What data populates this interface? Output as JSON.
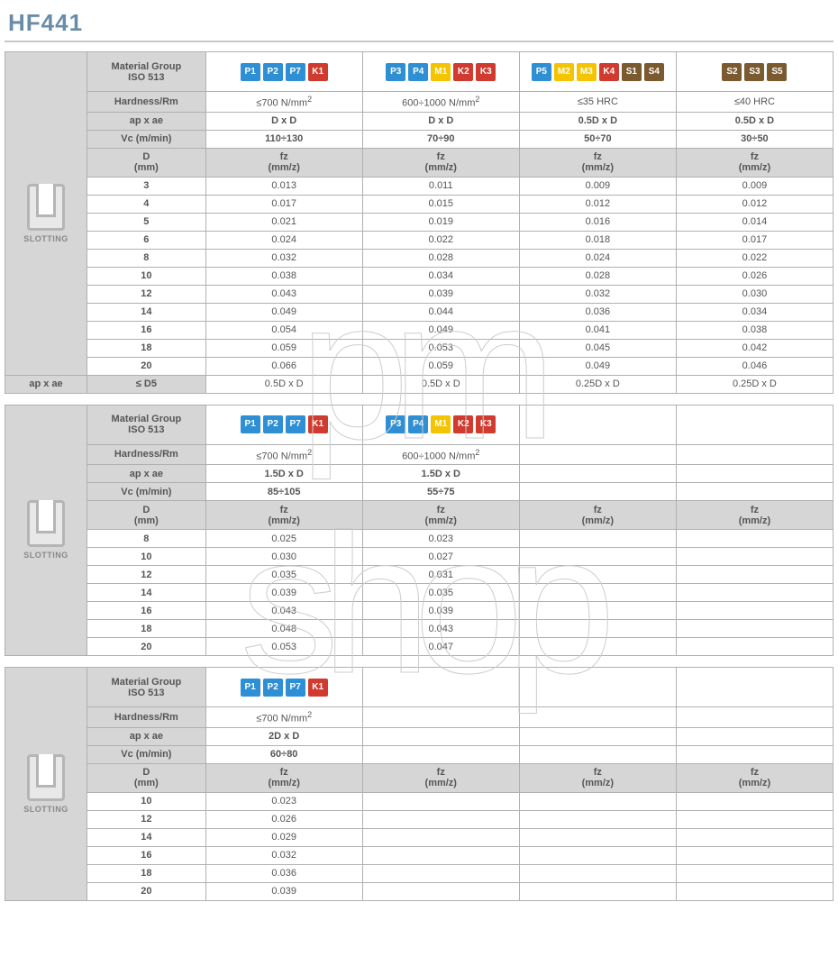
{
  "title": "HF441",
  "slotting_label": "SLOTTING",
  "labels": {
    "material_group": "Material Group\nISO 513",
    "hardness": "Hardness/Rm",
    "ap_ae": "ap x ae",
    "vc": "Vc (m/min)",
    "d": "D\n(mm)",
    "fz": "fz\n(mm/z)"
  },
  "footer_label": "ap x ae",
  "footer_d": "≤ D5",
  "table1": {
    "cols": [
      {
        "chips": [
          [
            "P",
            "P1"
          ],
          [
            "P",
            "P2"
          ],
          [
            "P",
            "P7"
          ],
          [
            "K",
            "K1"
          ]
        ],
        "hardness": "≤700 N/mm²",
        "ap_ae": "D x D",
        "vc": "110÷130",
        "footer": "0.5D x D"
      },
      {
        "chips": [
          [
            "P",
            "P3"
          ],
          [
            "P",
            "P4"
          ],
          [
            "M",
            "M1"
          ],
          [
            "K",
            "K2"
          ],
          [
            "K",
            "K3"
          ]
        ],
        "hardness": "600÷1000 N/mm²",
        "ap_ae": "D x D",
        "vc": "70÷90",
        "footer": "0.5D x D"
      },
      {
        "chips": [
          [
            "P",
            "P5"
          ],
          [
            "M",
            "M2"
          ],
          [
            "M",
            "M3"
          ],
          [
            "K",
            "K4"
          ],
          [
            "S",
            "S1"
          ],
          [
            "S",
            "S4"
          ]
        ],
        "hardness": "≤35 HRC",
        "ap_ae": "0.5D x D",
        "vc": "50÷70",
        "footer": "0.25D x D"
      },
      {
        "chips": [
          [
            "S",
            "S2"
          ],
          [
            "S",
            "S3"
          ],
          [
            "S",
            "S5"
          ]
        ],
        "hardness": "≤40 HRC",
        "ap_ae": "0.5D x D",
        "vc": "30÷50",
        "footer": "0.25D x D"
      }
    ],
    "rows": [
      {
        "d": "3",
        "v": [
          "0.013",
          "0.011",
          "0.009",
          "0.009"
        ]
      },
      {
        "d": "4",
        "v": [
          "0.017",
          "0.015",
          "0.012",
          "0.012"
        ]
      },
      {
        "d": "5",
        "v": [
          "0.021",
          "0.019",
          "0.016",
          "0.014"
        ]
      },
      {
        "d": "6",
        "v": [
          "0.024",
          "0.022",
          "0.018",
          "0.017"
        ]
      },
      {
        "d": "8",
        "v": [
          "0.032",
          "0.028",
          "0.024",
          "0.022"
        ]
      },
      {
        "d": "10",
        "v": [
          "0.038",
          "0.034",
          "0.028",
          "0.026"
        ]
      },
      {
        "d": "12",
        "v": [
          "0.043",
          "0.039",
          "0.032",
          "0.030"
        ]
      },
      {
        "d": "14",
        "v": [
          "0.049",
          "0.044",
          "0.036",
          "0.034"
        ]
      },
      {
        "d": "16",
        "v": [
          "0.054",
          "0.049",
          "0.041",
          "0.038"
        ]
      },
      {
        "d": "18",
        "v": [
          "0.059",
          "0.053",
          "0.045",
          "0.042"
        ]
      },
      {
        "d": "20",
        "v": [
          "0.066",
          "0.059",
          "0.049",
          "0.046"
        ]
      }
    ]
  },
  "table2": {
    "cols": [
      {
        "chips": [
          [
            "P",
            "P1"
          ],
          [
            "P",
            "P2"
          ],
          [
            "P",
            "P7"
          ],
          [
            "K",
            "K1"
          ]
        ],
        "hardness": "≤700 N/mm²",
        "ap_ae": "1.5D x D",
        "vc": "85÷105"
      },
      {
        "chips": [
          [
            "P",
            "P3"
          ],
          [
            "P",
            "P4"
          ],
          [
            "M",
            "M1"
          ],
          [
            "K",
            "K2"
          ],
          [
            "K",
            "K3"
          ]
        ],
        "hardness": "600÷1000 N/mm²",
        "ap_ae": "1.5D x D",
        "vc": "55÷75"
      },
      {
        "chips": [],
        "hardness": "",
        "ap_ae": "",
        "vc": ""
      },
      {
        "chips": [],
        "hardness": "",
        "ap_ae": "",
        "vc": ""
      }
    ],
    "rows": [
      {
        "d": "8",
        "v": [
          "0.025",
          "0.023",
          "",
          ""
        ]
      },
      {
        "d": "10",
        "v": [
          "0.030",
          "0.027",
          "",
          ""
        ]
      },
      {
        "d": "12",
        "v": [
          "0.035",
          "0.031",
          "",
          ""
        ]
      },
      {
        "d": "14",
        "v": [
          "0.039",
          "0.035",
          "",
          ""
        ]
      },
      {
        "d": "16",
        "v": [
          "0.043",
          "0.039",
          "",
          ""
        ]
      },
      {
        "d": "18",
        "v": [
          "0.048",
          "0.043",
          "",
          ""
        ]
      },
      {
        "d": "20",
        "v": [
          "0.053",
          "0.047",
          "",
          ""
        ]
      }
    ]
  },
  "table3": {
    "cols": [
      {
        "chips": [
          [
            "P",
            "P1"
          ],
          [
            "P",
            "P2"
          ],
          [
            "P",
            "P7"
          ],
          [
            "K",
            "K1"
          ]
        ],
        "hardness": "≤700 N/mm²",
        "ap_ae": "2D x D",
        "vc": "60÷80"
      },
      {
        "chips": [],
        "hardness": "",
        "ap_ae": "",
        "vc": ""
      },
      {
        "chips": [],
        "hardness": "",
        "ap_ae": "",
        "vc": ""
      },
      {
        "chips": [],
        "hardness": "",
        "ap_ae": "",
        "vc": ""
      }
    ],
    "rows": [
      {
        "d": "10",
        "v": [
          "0.023",
          "",
          "",
          ""
        ]
      },
      {
        "d": "12",
        "v": [
          "0.026",
          "",
          "",
          ""
        ]
      },
      {
        "d": "14",
        "v": [
          "0.029",
          "",
          "",
          ""
        ]
      },
      {
        "d": "16",
        "v": [
          "0.032",
          "",
          "",
          ""
        ]
      },
      {
        "d": "18",
        "v": [
          "0.036",
          "",
          "",
          ""
        ]
      },
      {
        "d": "20",
        "v": [
          "0.039",
          "",
          "",
          ""
        ]
      }
    ]
  },
  "watermark": {
    "line1": "pm",
    "line2": "shop"
  }
}
